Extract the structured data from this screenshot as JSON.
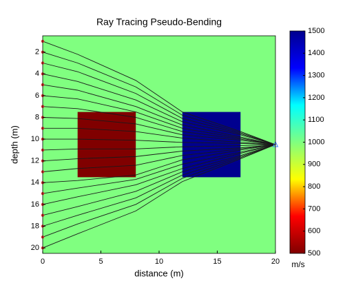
{
  "chart_data": {
    "type": "raytrace",
    "title": "Ray Tracing Pseudo-Bending",
    "x_label": "distance (m)",
    "y_label": "depth (m)",
    "xlim": [
      0,
      20
    ],
    "ylim": [
      0.5,
      20.5
    ],
    "y_reversed": true,
    "xticks": [
      0,
      5,
      10,
      15,
      20
    ],
    "yticks": [
      2,
      4,
      6,
      8,
      10,
      12,
      14,
      16,
      18,
      20
    ],
    "background_value": 1000,
    "background_color": "#80ff80",
    "regions": [
      {
        "x": [
          3,
          8
        ],
        "y": [
          7.5,
          13.5
        ],
        "value": 500,
        "color": "#800000"
      },
      {
        "x": [
          12,
          17
        ],
        "y": [
          7.5,
          13.5
        ],
        "value": 1500,
        "color": "#00008f"
      }
    ],
    "x": [
      0,
      3,
      8,
      12,
      17,
      20
    ],
    "ray_color": "#1a1a1a",
    "source_color": "#e03030",
    "receiver": {
      "x": 20,
      "y": 10.5,
      "color": "#4080ff"
    },
    "series": [
      {
        "values": [
          1,
          2.2,
          4.6,
          7.5,
          9.3,
          10.5
        ]
      },
      {
        "values": [
          2,
          3.0,
          5.2,
          7.8,
          9.4,
          10.5
        ]
      },
      {
        "values": [
          3,
          3.8,
          5.8,
          8.1,
          9.5,
          10.5
        ]
      },
      {
        "values": [
          4,
          4.7,
          6.4,
          8.4,
          9.6,
          10.5
        ]
      },
      {
        "values": [
          5,
          5.5,
          7.0,
          8.7,
          9.8,
          10.5
        ]
      },
      {
        "values": [
          6,
          6.3,
          7.5,
          9.0,
          9.9,
          10.5
        ]
      },
      {
        "values": [
          7,
          7.2,
          8.0,
          9.3,
          10.0,
          10.5
        ]
      },
      {
        "values": [
          8,
          8.1,
          8.6,
          9.6,
          10.1,
          10.5
        ]
      },
      {
        "values": [
          9,
          9.0,
          9.3,
          9.9,
          10.3,
          10.5
        ]
      },
      {
        "values": [
          10,
          10.0,
          10.1,
          10.3,
          10.4,
          10.5
        ]
      },
      {
        "values": [
          11,
          10.9,
          10.9,
          10.7,
          10.6,
          10.5
        ]
      },
      {
        "values": [
          12,
          11.8,
          11.6,
          11.1,
          10.8,
          10.5
        ]
      },
      {
        "values": [
          13,
          12.7,
          12.4,
          11.5,
          10.9,
          10.5
        ]
      },
      {
        "values": [
          14,
          13.8,
          13.3,
          11.9,
          11.0,
          10.5
        ]
      },
      {
        "values": [
          15,
          14.5,
          13.7,
          12.3,
          11.2,
          10.5
        ]
      },
      {
        "values": [
          16,
          15.3,
          14.2,
          12.7,
          11.3,
          10.5
        ]
      },
      {
        "values": [
          17,
          16.2,
          14.8,
          13.0,
          11.5,
          10.5
        ]
      },
      {
        "values": [
          18,
          17.0,
          15.4,
          13.3,
          11.6,
          10.5
        ]
      },
      {
        "values": [
          19,
          17.8,
          16.0,
          13.6,
          11.7,
          10.5
        ]
      },
      {
        "values": [
          20,
          18.7,
          16.6,
          13.9,
          11.8,
          10.5
        ]
      }
    ],
    "colorbar": {
      "label": "m/s",
      "clim": [
        500,
        1500
      ],
      "ticks": [
        500,
        600,
        700,
        800,
        900,
        1000,
        1100,
        1200,
        1300,
        1400,
        1500
      ],
      "colormap": [
        "#800000",
        "#ff0000",
        "#ffff00",
        "#80ff80",
        "#00ffff",
        "#0000ff",
        "#00008f"
      ]
    }
  }
}
